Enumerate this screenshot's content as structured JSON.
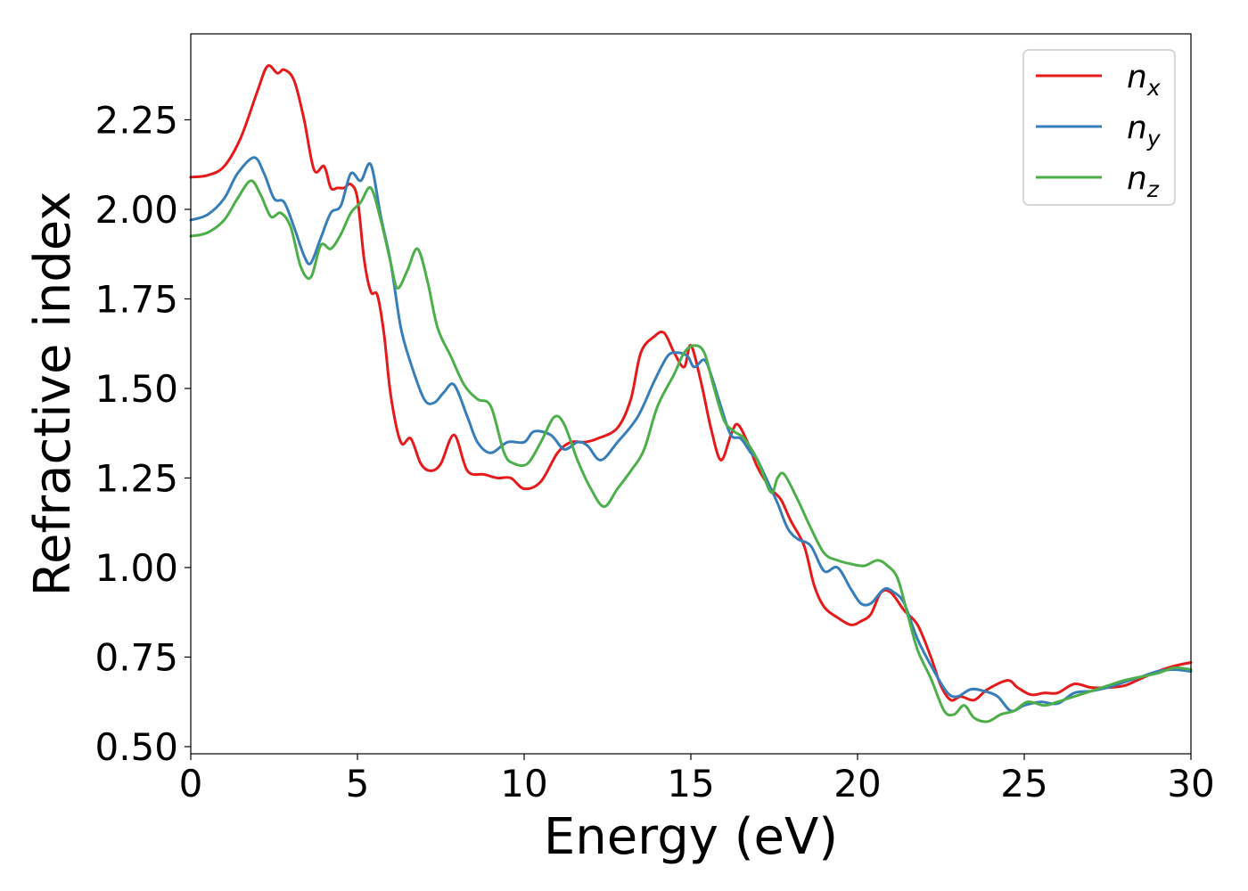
{
  "chart_data": {
    "type": "line",
    "xlabel": "Energy (eV)",
    "ylabel": "Refractive index",
    "xlim": [
      0,
      30
    ],
    "ylim": [
      0.48,
      2.49
    ],
    "xticks": [
      "0",
      "5",
      "10",
      "15",
      "20",
      "25",
      "30"
    ],
    "yticks": [
      "0.50",
      "0.75",
      "1.00",
      "1.25",
      "1.50",
      "1.75",
      "2.00",
      "2.25"
    ],
    "grid": false,
    "legend_position": "top-right",
    "legend": [
      {
        "base": "n",
        "sub": "x"
      },
      {
        "base": "n",
        "sub": "y"
      },
      {
        "base": "n",
        "sub": "z"
      }
    ],
    "series": [
      {
        "name": "n_x",
        "color": "#e41a1c",
        "points": [
          [
            0,
            2.09
          ],
          [
            0.5,
            2.095
          ],
          [
            1,
            2.12
          ],
          [
            1.5,
            2.2
          ],
          [
            2,
            2.33
          ],
          [
            2.3,
            2.4
          ],
          [
            2.6,
            2.38
          ],
          [
            2.8,
            2.39
          ],
          [
            3.1,
            2.36
          ],
          [
            3.4,
            2.25
          ],
          [
            3.7,
            2.11
          ],
          [
            4.0,
            2.12
          ],
          [
            4.2,
            2.06
          ],
          [
            4.4,
            2.06
          ],
          [
            4.6,
            2.06
          ],
          [
            4.8,
            2.07
          ],
          [
            5.0,
            2.03
          ],
          [
            5.2,
            1.86
          ],
          [
            5.4,
            1.77
          ],
          [
            5.6,
            1.76
          ],
          [
            5.8,
            1.65
          ],
          [
            6.0,
            1.48
          ],
          [
            6.3,
            1.35
          ],
          [
            6.6,
            1.36
          ],
          [
            6.9,
            1.29
          ],
          [
            7.2,
            1.27
          ],
          [
            7.5,
            1.29
          ],
          [
            7.9,
            1.37
          ],
          [
            8.3,
            1.27
          ],
          [
            8.8,
            1.26
          ],
          [
            9.2,
            1.25
          ],
          [
            9.6,
            1.25
          ],
          [
            10.0,
            1.22
          ],
          [
            10.5,
            1.24
          ],
          [
            11.0,
            1.32
          ],
          [
            11.4,
            1.35
          ],
          [
            11.8,
            1.35
          ],
          [
            12.2,
            1.36
          ],
          [
            12.8,
            1.39
          ],
          [
            13.2,
            1.47
          ],
          [
            13.5,
            1.6
          ],
          [
            13.9,
            1.645
          ],
          [
            14.2,
            1.655
          ],
          [
            14.5,
            1.6
          ],
          [
            14.8,
            1.56
          ],
          [
            15.0,
            1.62
          ],
          [
            15.3,
            1.52
          ],
          [
            15.6,
            1.39
          ],
          [
            15.9,
            1.3
          ],
          [
            16.2,
            1.37
          ],
          [
            16.4,
            1.4
          ],
          [
            16.7,
            1.35
          ],
          [
            17.0,
            1.28
          ],
          [
            17.4,
            1.22
          ],
          [
            17.7,
            1.19
          ],
          [
            18.0,
            1.13
          ],
          [
            18.4,
            1.06
          ],
          [
            18.7,
            0.95
          ],
          [
            19.0,
            0.89
          ],
          [
            19.4,
            0.86
          ],
          [
            19.8,
            0.84
          ],
          [
            20.1,
            0.85
          ],
          [
            20.4,
            0.87
          ],
          [
            20.7,
            0.93
          ],
          [
            21.0,
            0.93
          ],
          [
            21.4,
            0.88
          ],
          [
            21.8,
            0.84
          ],
          [
            22.2,
            0.75
          ],
          [
            22.5,
            0.67
          ],
          [
            22.8,
            0.63
          ],
          [
            23.1,
            0.64
          ],
          [
            23.5,
            0.63
          ],
          [
            23.9,
            0.66
          ],
          [
            24.5,
            0.685
          ],
          [
            24.8,
            0.665
          ],
          [
            25.2,
            0.645
          ],
          [
            25.6,
            0.65
          ],
          [
            26.0,
            0.65
          ],
          [
            26.5,
            0.675
          ],
          [
            27.0,
            0.665
          ],
          [
            27.5,
            0.665
          ],
          [
            28.0,
            0.67
          ],
          [
            28.5,
            0.69
          ],
          [
            29.0,
            0.71
          ],
          [
            29.5,
            0.725
          ],
          [
            30,
            0.735
          ]
        ]
      },
      {
        "name": "n_y",
        "color": "#377eb8",
        "points": [
          [
            0,
            1.97
          ],
          [
            0.5,
            1.985
          ],
          [
            1,
            2.03
          ],
          [
            1.4,
            2.1
          ],
          [
            1.9,
            2.145
          ],
          [
            2.2,
            2.1
          ],
          [
            2.5,
            2.03
          ],
          [
            2.8,
            2.02
          ],
          [
            3.1,
            1.95
          ],
          [
            3.4,
            1.87
          ],
          [
            3.6,
            1.85
          ],
          [
            3.9,
            1.92
          ],
          [
            4.2,
            1.99
          ],
          [
            4.5,
            2.01
          ],
          [
            4.8,
            2.1
          ],
          [
            5.1,
            2.08
          ],
          [
            5.4,
            2.125
          ],
          [
            5.7,
            1.98
          ],
          [
            6.0,
            1.85
          ],
          [
            6.3,
            1.67
          ],
          [
            6.6,
            1.57
          ],
          [
            7.0,
            1.47
          ],
          [
            7.3,
            1.46
          ],
          [
            7.6,
            1.49
          ],
          [
            7.9,
            1.51
          ],
          [
            8.3,
            1.42
          ],
          [
            8.6,
            1.35
          ],
          [
            9.0,
            1.32
          ],
          [
            9.5,
            1.35
          ],
          [
            10.0,
            1.35
          ],
          [
            10.3,
            1.38
          ],
          [
            10.8,
            1.37
          ],
          [
            11.2,
            1.33
          ],
          [
            11.6,
            1.35
          ],
          [
            11.9,
            1.34
          ],
          [
            12.3,
            1.3
          ],
          [
            12.8,
            1.35
          ],
          [
            13.4,
            1.42
          ],
          [
            13.9,
            1.52
          ],
          [
            14.3,
            1.59
          ],
          [
            14.6,
            1.6
          ],
          [
            14.9,
            1.59
          ],
          [
            15.1,
            1.56
          ],
          [
            15.4,
            1.58
          ],
          [
            15.6,
            1.54
          ],
          [
            15.9,
            1.45
          ],
          [
            16.2,
            1.37
          ],
          [
            16.5,
            1.36
          ],
          [
            16.8,
            1.32
          ],
          [
            17.0,
            1.3
          ],
          [
            17.4,
            1.22
          ],
          [
            17.6,
            1.18
          ],
          [
            17.9,
            1.11
          ],
          [
            18.2,
            1.08
          ],
          [
            18.6,
            1.06
          ],
          [
            19.0,
            0.99
          ],
          [
            19.4,
            1.0
          ],
          [
            19.8,
            0.94
          ],
          [
            20.1,
            0.9
          ],
          [
            20.4,
            0.9
          ],
          [
            20.8,
            0.94
          ],
          [
            21.1,
            0.93
          ],
          [
            21.4,
            0.9
          ],
          [
            21.8,
            0.8
          ],
          [
            22.3,
            0.71
          ],
          [
            22.7,
            0.65
          ],
          [
            23.0,
            0.64
          ],
          [
            23.4,
            0.66
          ],
          [
            23.8,
            0.655
          ],
          [
            24.2,
            0.64
          ],
          [
            24.6,
            0.6
          ],
          [
            25.0,
            0.615
          ],
          [
            25.5,
            0.625
          ],
          [
            26.0,
            0.62
          ],
          [
            26.5,
            0.65
          ],
          [
            27.0,
            0.655
          ],
          [
            27.5,
            0.665
          ],
          [
            28.0,
            0.68
          ],
          [
            28.5,
            0.695
          ],
          [
            29.0,
            0.71
          ],
          [
            29.5,
            0.715
          ],
          [
            30,
            0.71
          ]
        ]
      },
      {
        "name": "n_z",
        "color": "#4daf4a",
        "points": [
          [
            0,
            1.925
          ],
          [
            0.5,
            1.935
          ],
          [
            1,
            1.97
          ],
          [
            1.4,
            2.03
          ],
          [
            1.8,
            2.08
          ],
          [
            2.1,
            2.04
          ],
          [
            2.4,
            1.98
          ],
          [
            2.7,
            1.99
          ],
          [
            3.0,
            1.95
          ],
          [
            3.3,
            1.84
          ],
          [
            3.6,
            1.81
          ],
          [
            3.9,
            1.9
          ],
          [
            4.2,
            1.89
          ],
          [
            4.5,
            1.93
          ],
          [
            4.8,
            1.99
          ],
          [
            5.1,
            2.02
          ],
          [
            5.4,
            2.06
          ],
          [
            5.7,
            1.97
          ],
          [
            6.0,
            1.85
          ],
          [
            6.2,
            1.78
          ],
          [
            6.5,
            1.83
          ],
          [
            6.8,
            1.89
          ],
          [
            7.1,
            1.8
          ],
          [
            7.4,
            1.67
          ],
          [
            7.8,
            1.59
          ],
          [
            8.2,
            1.51
          ],
          [
            8.6,
            1.47
          ],
          [
            9.0,
            1.45
          ],
          [
            9.4,
            1.32
          ],
          [
            9.7,
            1.29
          ],
          [
            10.1,
            1.29
          ],
          [
            10.5,
            1.35
          ],
          [
            10.9,
            1.42
          ],
          [
            11.2,
            1.4
          ],
          [
            11.6,
            1.3
          ],
          [
            12.0,
            1.22
          ],
          [
            12.4,
            1.17
          ],
          [
            12.8,
            1.22
          ],
          [
            13.2,
            1.27
          ],
          [
            13.6,
            1.33
          ],
          [
            14.0,
            1.45
          ],
          [
            14.5,
            1.54
          ],
          [
            14.8,
            1.6
          ],
          [
            15.1,
            1.62
          ],
          [
            15.4,
            1.6
          ],
          [
            15.7,
            1.5
          ],
          [
            16.0,
            1.41
          ],
          [
            16.3,
            1.38
          ],
          [
            16.6,
            1.36
          ],
          [
            17.0,
            1.3
          ],
          [
            17.4,
            1.21
          ],
          [
            17.6,
            1.25
          ],
          [
            17.8,
            1.26
          ],
          [
            18.2,
            1.19
          ],
          [
            18.6,
            1.11
          ],
          [
            19.0,
            1.04
          ],
          [
            19.4,
            1.02
          ],
          [
            19.8,
            1.01
          ],
          [
            20.2,
            1.005
          ],
          [
            20.6,
            1.02
          ],
          [
            20.9,
            1.005
          ],
          [
            21.2,
            0.97
          ],
          [
            21.5,
            0.87
          ],
          [
            21.8,
            0.77
          ],
          [
            22.2,
            0.69
          ],
          [
            22.6,
            0.6
          ],
          [
            22.9,
            0.59
          ],
          [
            23.2,
            0.615
          ],
          [
            23.5,
            0.58
          ],
          [
            23.9,
            0.57
          ],
          [
            24.3,
            0.59
          ],
          [
            24.7,
            0.6
          ],
          [
            25.1,
            0.625
          ],
          [
            25.6,
            0.615
          ],
          [
            26.0,
            0.625
          ],
          [
            26.5,
            0.64
          ],
          [
            27.0,
            0.655
          ],
          [
            27.5,
            0.67
          ],
          [
            28.0,
            0.685
          ],
          [
            28.5,
            0.695
          ],
          [
            29.0,
            0.705
          ],
          [
            29.5,
            0.72
          ],
          [
            30,
            0.715
          ]
        ]
      }
    ]
  }
}
